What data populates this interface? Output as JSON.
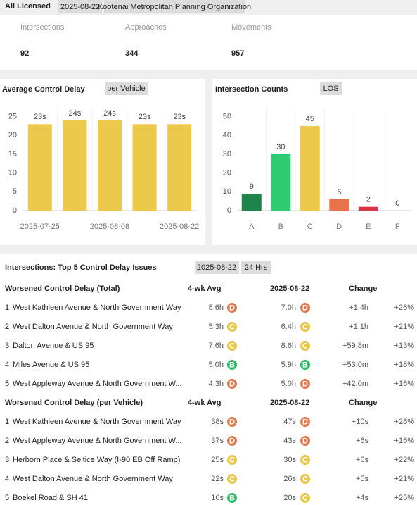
{
  "header": {
    "title": "All Licensed",
    "date": "2025-08-22",
    "organization": "Kootenai Metropolitan Planning Organization"
  },
  "kpis": [
    {
      "label": "Intersections",
      "value": 92
    },
    {
      "label": "Approaches",
      "value": 344
    },
    {
      "label": "Movements",
      "value": 957
    }
  ],
  "chart_data": [
    {
      "type": "bar",
      "title": "Average Control Delay",
      "filter": "per Vehicle",
      "categories": [
        "2025-07-25",
        null,
        "2025-08-08",
        null,
        "2025-08-22"
      ],
      "values": [
        23,
        24,
        24,
        23,
        23
      ],
      "value_labels": [
        "23s",
        "24s",
        "24s",
        "23s",
        "23s"
      ],
      "color": "#ecc94b",
      "ylim": [
        0,
        27
      ],
      "yticks": [
        0,
        5,
        10,
        15,
        20,
        25
      ]
    },
    {
      "type": "bar",
      "title": "Intersection Counts",
      "filter": "LOS",
      "categories": [
        "A",
        "B",
        "C",
        "D",
        "E",
        "F"
      ],
      "values": [
        9,
        30,
        45,
        6,
        2,
        0
      ],
      "colors": [
        "#1e8449",
        "#2ecc71",
        "#ecc94b",
        "#e8734a",
        "#dc3545",
        "#cccccc"
      ],
      "ylim": [
        0,
        54
      ],
      "yticks": [
        0,
        10,
        20,
        30,
        40,
        50
      ]
    }
  ],
  "table": {
    "title": "Intersections: Top 5 Control Delay Issues",
    "filters": [
      "2025-08-22",
      "24 Hrs"
    ],
    "grade_colors": {
      "B": "#2ebd6b",
      "C": "#e9c84a",
      "D": "#e07b4f"
    },
    "groups": [
      {
        "header": [
          "Worsened Control Delay (Total)",
          "4-wk Avg",
          "2025-08-22",
          "Change"
        ],
        "rows": [
          [
            "1",
            "West Kathleen Avenue & North Government Way",
            "5.6h",
            "D",
            "7.0h",
            "D",
            "+1.4h",
            "+26%"
          ],
          [
            "2",
            "West Dalton Avenue & North Government Way",
            "5.3h",
            "C",
            "6.4h",
            "C",
            "+1.1h",
            "+21%"
          ],
          [
            "3",
            "Dalton Avenue & US 95",
            "7.6h",
            "C",
            "8.6h",
            "C",
            "+59.8m",
            "+13%"
          ],
          [
            "4",
            "Miles Avenue & US 95",
            "5.0h",
            "B",
            "5.9h",
            "B",
            "+53.0m",
            "+18%"
          ],
          [
            "5",
            "West Appleway Avenue & North Government W...",
            "4.3h",
            "D",
            "5.0h",
            "D",
            "+42.0m",
            "+16%"
          ]
        ]
      },
      {
        "header": [
          "Worsened Control Delay (per Vehicle)",
          "4-wk Avg",
          "2025-08-22",
          "Change"
        ],
        "rows": [
          [
            "1",
            "West Kathleen Avenue & North Government Way",
            "38s",
            "D",
            "47s",
            "D",
            "+10s",
            "+26%"
          ],
          [
            "2",
            "West Appleway Avenue & North Government W...",
            "37s",
            "D",
            "43s",
            "D",
            "+6s",
            "+16%"
          ],
          [
            "3",
            "Herborn Place & Seltice Way (I-90 EB Off Ramp)",
            "25s",
            "C",
            "30s",
            "C",
            "+6s",
            "+22%"
          ],
          [
            "4",
            "West Dalton Avenue & North Government Way",
            "22s",
            "C",
            "26s",
            "C",
            "+5s",
            "+21%"
          ],
          [
            "5",
            "Boekel Road & SH 41",
            "16s",
            "B",
            "20s",
            "C",
            "+4s",
            "+25%"
          ]
        ]
      }
    ]
  }
}
